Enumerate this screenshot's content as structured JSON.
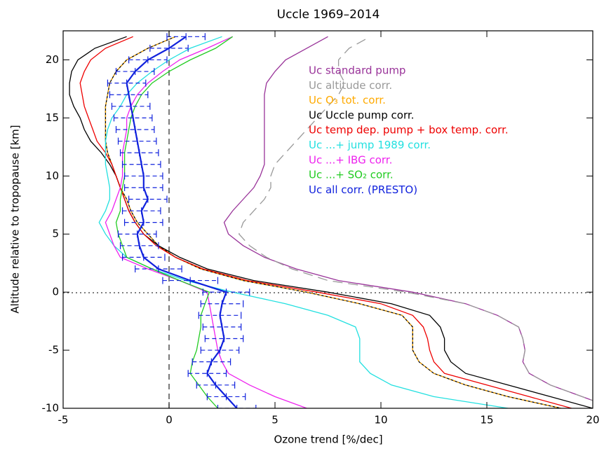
{
  "chart_data": {
    "type": "line",
    "orientation": "vertical",
    "title": "Uccle 1969–2014",
    "x_label": "Ozone trend [%/dec]",
    "y_label": "Altitude relative to tropopause [km]",
    "xlim": [
      -5,
      20
    ],
    "xticks": [
      -5,
      0,
      5,
      10,
      15,
      20
    ],
    "ylim": [
      -10,
      22.5
    ],
    "yticks": [
      -10,
      -5,
      0,
      5,
      10,
      15,
      20
    ],
    "y": [
      -10,
      -9,
      -8,
      -7,
      -6,
      -5,
      -4,
      -3,
      -2,
      -1,
      0,
      1,
      2,
      3,
      4,
      5,
      6,
      7,
      8,
      9,
      10,
      11,
      12,
      13,
      14,
      15,
      16,
      17,
      18,
      19,
      20,
      21,
      22
    ],
    "series": [
      {
        "name": "Uc standard pump",
        "color": "#993399",
        "line_style": "solid",
        "values": [
          21,
          19.5,
          18,
          17,
          16.7,
          16.8,
          16.7,
          16.5,
          15.5,
          14,
          11.5,
          8,
          6,
          4.5,
          3.5,
          2.8,
          2.6,
          3.0,
          3.5,
          4.0,
          4.3,
          4.5,
          4.5,
          4.5,
          4.5,
          4.5,
          4.5,
          4.5,
          4.6,
          5.0,
          5.5,
          6.5,
          7.5
        ]
      },
      {
        "name": "Uc altitude corr.",
        "color": "#999999",
        "line_style": "dashed",
        "values": [
          21,
          19.5,
          18,
          17,
          16.7,
          16.8,
          16.7,
          16.5,
          15.5,
          14,
          11.2,
          7.5,
          5.8,
          4.6,
          3.8,
          3.3,
          3.5,
          4.0,
          4.5,
          4.8,
          4.8,
          5.0,
          5.5,
          6.0,
          6.5,
          7.0,
          7.5,
          8.0,
          8.3,
          8.0,
          8.0,
          8.5,
          9.5
        ]
      },
      {
        "name": "Uc O₃ tot. corr.",
        "color": "#ffaa00",
        "line_style": "dotted",
        "values": [
          18.5,
          16,
          14,
          12.5,
          11.8,
          11.5,
          11.5,
          11.5,
          11.0,
          9.0,
          6.5,
          3.5,
          1.5,
          0.3,
          -0.5,
          -1.0,
          -1.5,
          -1.8,
          -2.0,
          -2.3,
          -2.5,
          -2.7,
          -2.9,
          -3.0,
          -3.0,
          -3.0,
          -3.0,
          -2.9,
          -2.8,
          -2.5,
          -2.0,
          -1.0,
          0.3
        ]
      },
      {
        "name": "Uc Uccle pump corr.",
        "color": "#000000",
        "line_style": "solid",
        "values": [
          20,
          18,
          16,
          14,
          13.3,
          13.0,
          13.0,
          12.8,
          12.3,
          10.5,
          7.5,
          4.0,
          1.8,
          0.5,
          -0.5,
          -1.2,
          -1.6,
          -1.9,
          -2.1,
          -2.3,
          -2.5,
          -2.8,
          -3.2,
          -3.7,
          -4.0,
          -4.2,
          -4.5,
          -4.7,
          -4.7,
          -4.6,
          -4.3,
          -3.5,
          -2.0
        ]
      },
      {
        "name": "Uc temp dep. pump + box temp. corr.",
        "color": "#ee0000",
        "line_style": "solid",
        "values": [
          19,
          17,
          15,
          13,
          12.5,
          12.3,
          12.2,
          12.0,
          11.5,
          10,
          7,
          3.7,
          1.6,
          0.3,
          -0.6,
          -1.2,
          -1.6,
          -1.9,
          -2.1,
          -2.3,
          -2.5,
          -2.7,
          -3.0,
          -3.4,
          -3.6,
          -3.8,
          -4.0,
          -4.1,
          -4.2,
          -4.0,
          -3.7,
          -3.0,
          -1.7
        ]
      },
      {
        "name": "Uc ...+ jump 1989 corr.",
        "color": "#22e0e0",
        "line_style": "solid",
        "values": [
          16,
          12.5,
          10.5,
          9.5,
          9.0,
          9.0,
          9.0,
          8.8,
          7.5,
          5.5,
          3.0,
          0.8,
          -0.8,
          -2.0,
          -2.6,
          -3.0,
          -3.3,
          -3.0,
          -2.8,
          -2.8,
          -2.9,
          -3.0,
          -3.0,
          -3.0,
          -2.9,
          -2.7,
          -2.3,
          -2.0,
          -1.5,
          -0.8,
          0.0,
          1.0,
          2.5
        ]
      },
      {
        "name": "Uc ...+ IBG corr.",
        "color": "#ee22ee",
        "line_style": "solid",
        "values": [
          6.5,
          5.0,
          3.8,
          2.8,
          2.5,
          2.3,
          2.2,
          2.1,
          2.0,
          1.9,
          1.8,
          0.5,
          -1.0,
          -2.3,
          -2.6,
          -2.8,
          -3.0,
          -2.7,
          -2.5,
          -2.3,
          -2.2,
          -2.2,
          -2.2,
          -2.1,
          -2.0,
          -2.0,
          -1.8,
          -1.5,
          -1.0,
          -0.3,
          0.5,
          1.8,
          3.0
        ]
      },
      {
        "name": "Uc ...+ SO₂ corr.",
        "color": "#22cc22",
        "line_style": "solid",
        "values": [
          2.3,
          1.8,
          1.4,
          1.0,
          1.1,
          1.3,
          1.4,
          1.5,
          1.5,
          1.7,
          1.9,
          0.5,
          -0.8,
          -2.0,
          -2.2,
          -2.4,
          -2.5,
          -2.3,
          -2.3,
          -2.2,
          -2.1,
          -2.1,
          -2.1,
          -2.0,
          -1.9,
          -1.8,
          -1.6,
          -1.3,
          -0.8,
          0.0,
          1.0,
          2.2,
          3.0
        ]
      },
      {
        "name": "Uc all corr. (PRESTO)",
        "color": "#1122dd",
        "line_style": "solid",
        "values": [
          3.2,
          2.7,
          2.2,
          1.8,
          2.0,
          2.4,
          2.6,
          2.5,
          2.4,
          2.5,
          2.7,
          1.0,
          -0.5,
          -1.2,
          -1.4,
          -1.5,
          -1.2,
          -1.3,
          -1.0,
          -1.2,
          -1.2,
          -1.3,
          -1.4,
          -1.5,
          -1.6,
          -1.7,
          -1.8,
          -1.9,
          -2.0,
          -1.6,
          -1.0,
          0.0,
          0.8
        ],
        "errors": [
          0.9,
          0.9,
          0.9,
          0.9,
          0.9,
          0.9,
          0.9,
          0.9,
          1.0,
          1.0,
          1.1,
          1.3,
          1.1,
          1.0,
          0.9,
          0.9,
          0.9,
          0.9,
          0.9,
          0.9,
          0.9,
          0.9,
          0.9,
          0.9,
          0.9,
          0.9,
          0.9,
          0.9,
          0.9,
          0.9,
          0.9,
          0.9,
          0.9
        ]
      }
    ]
  }
}
